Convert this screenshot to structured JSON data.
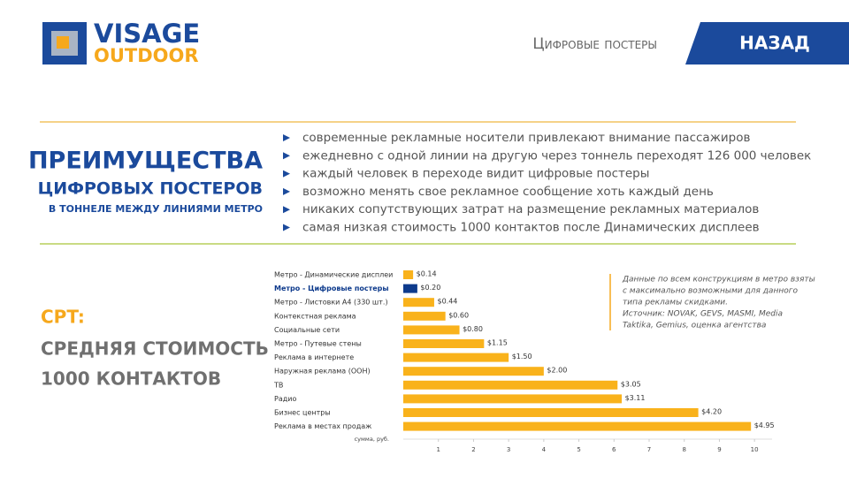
{
  "header": {
    "logo_top": "VISAGE",
    "logo_bottom": "OUTDOOR",
    "section": "Цифровые постеры",
    "back_button": "НАЗАД"
  },
  "headline": {
    "line1": "ПРЕИМУЩЕСТВА",
    "line2": "ЦИФРОВЫХ ПОСТЕРОВ",
    "line3": "В ТОННЕЛЕ МЕЖДУ ЛИНИЯМИ МЕТРО"
  },
  "bullets": [
    "современные рекламные носители привлекают внимание пассажиров",
    "ежедневно с одной линии на другую через тоннель переходят 126 000 человек",
    "каждый человек в переходе видит цифровые постеры",
    "возможно менять свое рекламное сообщение хоть каждый день",
    "никаких сопутствующих затрат на размещение рекламных материалов",
    "самая низкая стоимость 1000 контактов после Динамических дисплеев"
  ],
  "cpt": {
    "line1": "CPT:",
    "line2": "СРЕДНЯЯ СТОИМОСТЬ",
    "line3": "1000 КОНТАКТОВ"
  },
  "note": [
    "Данные по всем конструкциям в метро взяты",
    "с максимально возможными для данного",
    "типа рекламы скидками.",
    "Источник: NOVAK, GEVS, MASMI, Media",
    "Taktika, Gemius, оценка агентства"
  ],
  "chart_data": {
    "type": "bar",
    "x_label": "сумма, руб.",
    "categories": [
      "Метро - Динамические дисплеи",
      "Метро - Цифровые постеры",
      "Метро - Листовки А4 (330 шт.)",
      "Контекстная реклама",
      "Социальные сети",
      "Метро - Путевые стены",
      "Реклама в интернете",
      "Наружная реклама (ООН)",
      "ТВ",
      "Радио",
      "Бизнес центры",
      "Реклама в местах продаж"
    ],
    "values": [
      0.14,
      0.2,
      0.44,
      0.6,
      0.8,
      1.15,
      1.5,
      2.0,
      3.05,
      3.11,
      4.2,
      4.95
    ],
    "value_labels": [
      "$0.14",
      "$0.20",
      "$0.44",
      "$0.60",
      "$0.80",
      "$1.15",
      "$1.50",
      "$2.00",
      "$3.05",
      "$3.11",
      "$4.20",
      "$4.95"
    ],
    "color": "#f9b21b",
    "highlight_index": 1,
    "highlight_color": "#0d3a8c",
    "xlim": [
      0,
      5.25
    ],
    "xticks": [
      {
        "value": 0.5,
        "label": "1"
      },
      {
        "value": 1,
        "label": "2"
      },
      {
        "value": 1.5,
        "label": "3"
      },
      {
        "value": 2,
        "label": "4"
      },
      {
        "value": 2.5,
        "label": "5"
      },
      {
        "value": 3,
        "label": "6"
      },
      {
        "value": 3.5,
        "label": "7"
      },
      {
        "value": 4,
        "label": "8"
      },
      {
        "value": 4.5,
        "label": "9"
      },
      {
        "value": 5,
        "label": "10"
      }
    ]
  }
}
